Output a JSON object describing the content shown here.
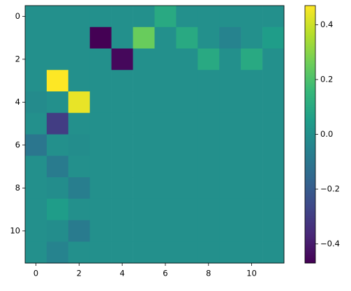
{
  "chart_data": {
    "type": "heatmap",
    "colormap": "viridis",
    "z": [
      [
        0,
        0,
        0,
        0,
        0,
        0,
        0.1,
        0,
        0,
        0,
        0,
        0
      ],
      [
        0,
        0,
        0,
        -0.47,
        0,
        0.25,
        0,
        0.1,
        0,
        -0.05,
        0,
        0.05
      ],
      [
        0,
        0,
        0,
        0,
        -0.45,
        0,
        0,
        0,
        0.1,
        0,
        0.1,
        0
      ],
      [
        0,
        0.47,
        0,
        0,
        0,
        0,
        0,
        0,
        0,
        0,
        0,
        0
      ],
      [
        -0.02,
        0,
        0.44,
        0,
        0,
        0,
        0,
        0,
        0,
        0,
        0,
        0
      ],
      [
        0,
        -0.3,
        0,
        0,
        0,
        0,
        0,
        0,
        0,
        0,
        0,
        0
      ],
      [
        -0.1,
        0,
        -0.01,
        0,
        0,
        0,
        0,
        0,
        0,
        0,
        0,
        0
      ],
      [
        0,
        -0.08,
        0,
        0,
        0,
        0,
        0,
        0,
        0,
        0,
        0,
        0
      ],
      [
        0,
        -0.01,
        -0.07,
        0,
        0,
        0,
        0,
        0,
        0,
        0,
        0,
        0
      ],
      [
        0,
        0.05,
        0,
        0,
        0,
        0,
        0,
        0,
        0,
        0,
        0,
        0
      ],
      [
        0,
        -0.01,
        -0.08,
        0,
        0,
        0,
        0,
        0,
        0,
        0,
        0,
        0
      ],
      [
        0,
        -0.05,
        0,
        0,
        0,
        0,
        0,
        0,
        0,
        0,
        0,
        0
      ]
    ],
    "xlim": [
      -0.5,
      11.5
    ],
    "ylim": [
      11.5,
      -0.5
    ],
    "xticks": [
      0,
      2,
      4,
      6,
      8,
      10
    ],
    "yticks": [
      0,
      2,
      4,
      6,
      8,
      10
    ],
    "clim": [
      -0.47,
      0.47
    ],
    "cticks": [
      {
        "value": -0.4,
        "label": "−0.4"
      },
      {
        "value": -0.2,
        "label": "−0.2"
      },
      {
        "value": 0,
        "label": "0.0"
      },
      0.2,
      0.4
    ]
  }
}
